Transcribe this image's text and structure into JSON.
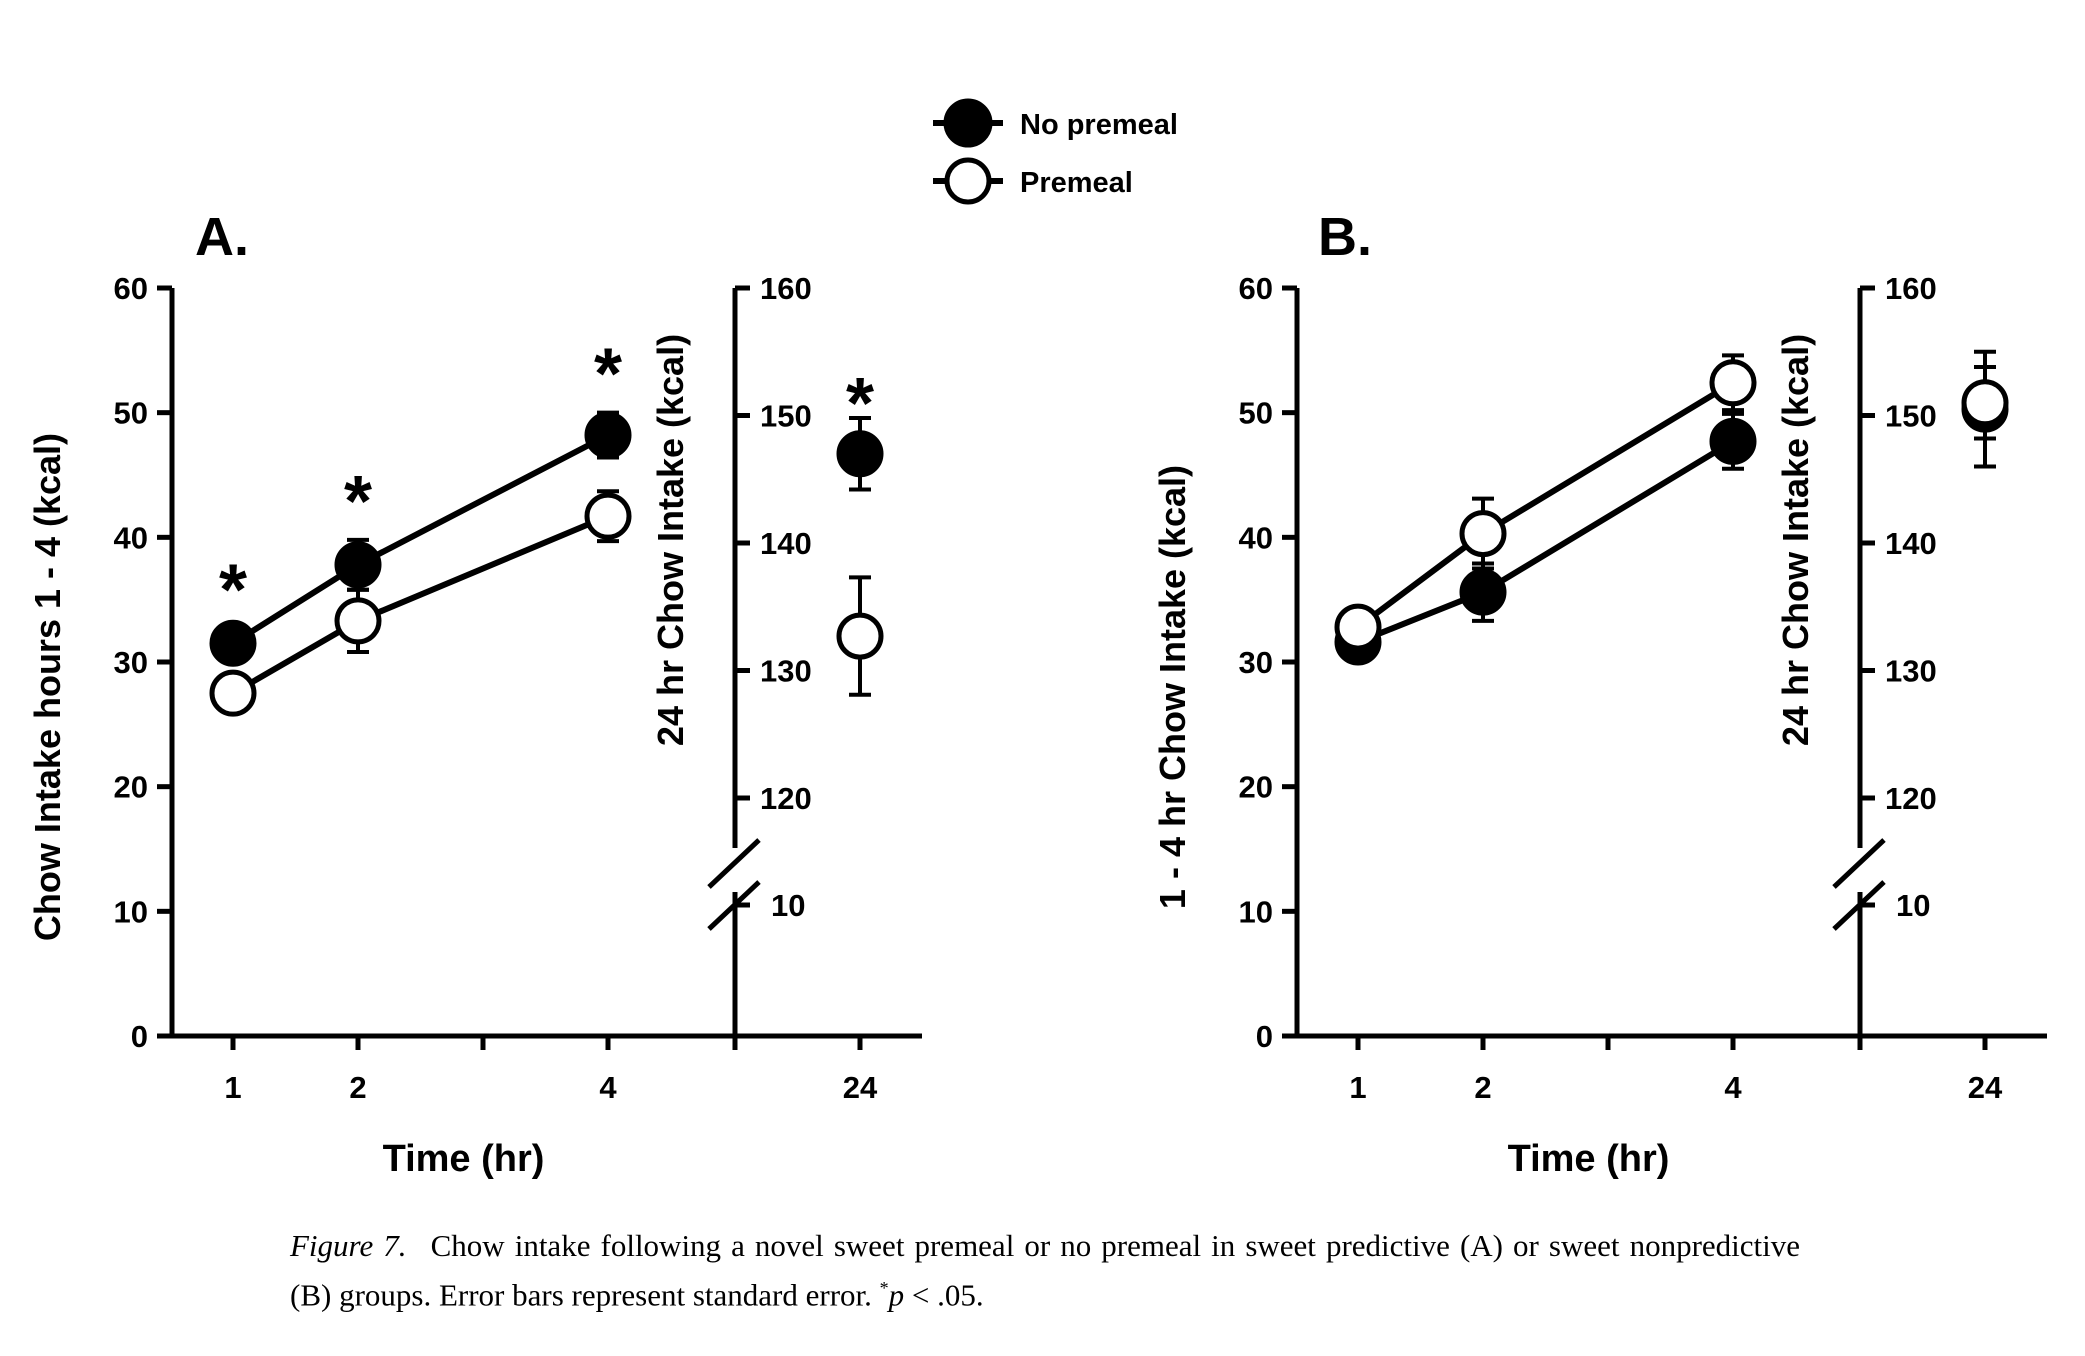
{
  "legend": {
    "entries": [
      {
        "label": "No premeal",
        "marker": "filled-circle"
      },
      {
        "label": "Premeal",
        "marker": "open-circle"
      }
    ]
  },
  "caption": {
    "lead": "Figure 7.",
    "text": "Chow intake following a novel sweet premeal or no premeal in sweet predictive (A) or sweet nonpredictive (B) groups. Error bars represent standard error.",
    "sig_star": "*",
    "sig_p": "p",
    "sig_rest": " < .05."
  },
  "colors": {
    "filled": "#000000",
    "open": "#ffffff",
    "stroke": "#000000"
  },
  "chart_data": [
    {
      "type": "line",
      "panel": "A.",
      "xlabel": "Time (hr)",
      "ylabel": "Chow Intake hours 1 - 4 (kcal)",
      "y2label": "24 hr Chow Intake (kcal)",
      "ylim": [
        0,
        60
      ],
      "yticks": [
        0,
        10,
        20,
        30,
        40,
        50,
        60
      ],
      "y2lim": [
        110,
        160
      ],
      "y2ticks": [
        120,
        130,
        140,
        150,
        160
      ],
      "y2break_label": "10",
      "x": [
        1,
        2,
        4
      ],
      "xticks": [
        "1",
        "2",
        "4"
      ],
      "x24": "24",
      "series": [
        {
          "name": "No premeal",
          "marker": "filled",
          "values": [
            31.5,
            37.8,
            48.2
          ],
          "errors": [
            1.2,
            2.0,
            1.8
          ],
          "value24": 147,
          "error24": 2.8
        },
        {
          "name": "Premeal",
          "marker": "open",
          "values": [
            27.5,
            33.3,
            41.7
          ],
          "errors": [
            1.0,
            2.5,
            2.0
          ],
          "value24": 132.7,
          "error24": 4.6
        }
      ],
      "significance": {
        "symbol": "*",
        "x": [
          1,
          2,
          4
        ],
        "at24": true
      }
    },
    {
      "type": "line",
      "panel": "B.",
      "xlabel": "Time (hr)",
      "ylabel": "1 - 4 hr Chow Intake (kcal)",
      "y2label": "24 hr Chow Intake (kcal)",
      "ylim": [
        0,
        60
      ],
      "yticks": [
        0,
        10,
        20,
        30,
        40,
        50,
        60
      ],
      "y2lim": [
        110,
        160
      ],
      "y2ticks": [
        120,
        130,
        140,
        150,
        160
      ],
      "y2break_label": "10",
      "x": [
        1,
        2,
        4
      ],
      "xticks": [
        "1",
        "2",
        "4"
      ],
      "x24": "24",
      "series": [
        {
          "name": "No premeal",
          "marker": "filled",
          "values": [
            31.6,
            35.6,
            47.7
          ],
          "errors": [
            1.0,
            2.3,
            2.2
          ],
          "value24": 150.5,
          "error24": 4.5
        },
        {
          "name": "Premeal",
          "marker": "open",
          "values": [
            32.8,
            40.3,
            52.4
          ],
          "errors": [
            1.0,
            2.8,
            2.2
          ],
          "value24": 151,
          "error24": 2.8
        }
      ],
      "significance": {
        "symbol": "*",
        "x": [],
        "at24": false
      }
    }
  ]
}
